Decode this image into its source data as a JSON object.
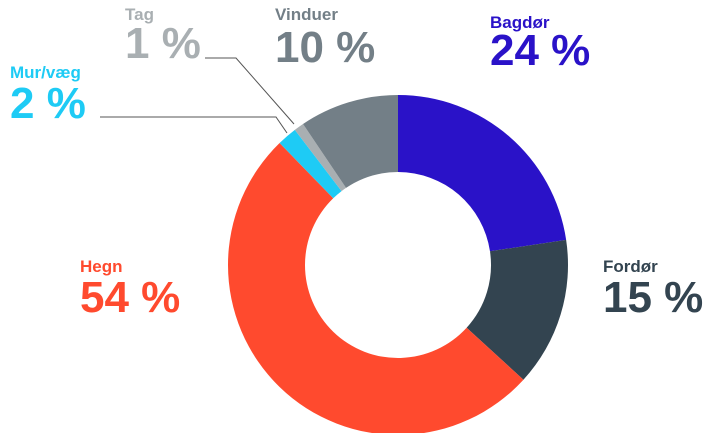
{
  "chart_data": {
    "type": "donut",
    "categories": [
      "Bagdør",
      "Fordør",
      "Hegn",
      "Mur/væg",
      "Tag",
      "Vinduer"
    ],
    "values": [
      24,
      15,
      54,
      2,
      1,
      10
    ],
    "value_labels": [
      "24 %",
      "15 %",
      "54 %",
      "2 %",
      "1 %",
      "10 %"
    ],
    "colors": [
      "#2a12c8",
      "#334450",
      "#ff4a2e",
      "#1ecbf5",
      "#a9afb2",
      "#737f87"
    ]
  }
}
